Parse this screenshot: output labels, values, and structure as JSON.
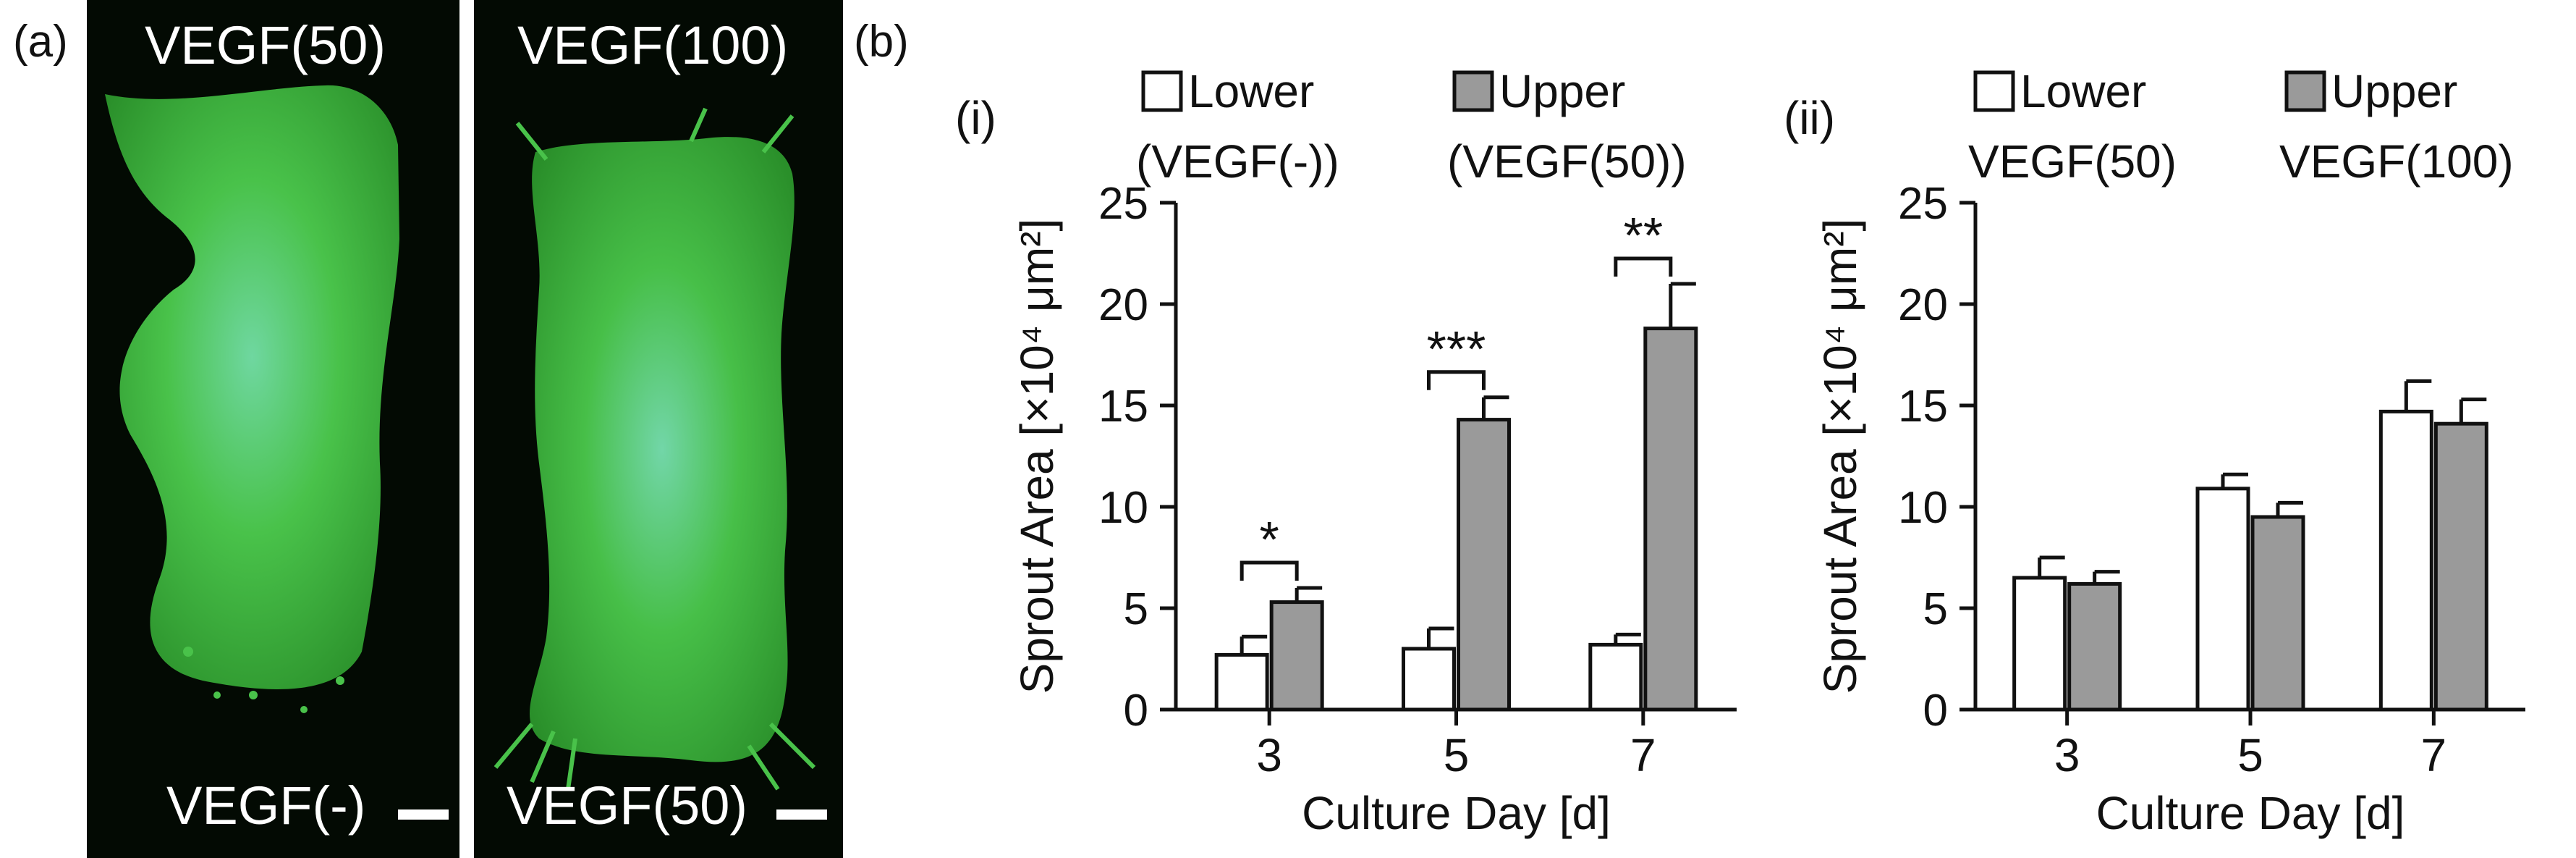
{
  "panel_labels": {
    "a": "(a)",
    "b": "(b)"
  },
  "micrographs": [
    {
      "top_label": "VEGF(50)",
      "bottom_label": "VEGF(-)"
    },
    {
      "top_label": "VEGF(100)",
      "bottom_label": "VEGF(50)"
    }
  ],
  "colors": {
    "upper_bar": "#9a9a9a",
    "lower_bar": "#ffffff",
    "fluorescence": "#3ec83e"
  },
  "chart_data": [
    {
      "type": "bar",
      "panel": "(i)",
      "categories": [
        "3",
        "5",
        "7"
      ],
      "series": [
        {
          "name": "Lower",
          "name2": "(VEGF(-))",
          "values": [
            2.7,
            3.0,
            3.2
          ],
          "errors": [
            0.9,
            1.0,
            0.5
          ]
        },
        {
          "name": "Upper",
          "name2": "(VEGF(50))",
          "values": [
            5.3,
            14.3,
            18.8
          ],
          "errors": [
            0.7,
            1.1,
            2.2
          ]
        }
      ],
      "significance": [
        "*",
        "***",
        "**"
      ],
      "xlabel": "Culture Day [d]",
      "ylabel": "Sprout Area [×10⁴ μm²]",
      "ylim": [
        0,
        25
      ],
      "yticks": [
        0,
        5,
        10,
        15,
        20,
        25
      ]
    },
    {
      "type": "bar",
      "panel": "(ii)",
      "categories": [
        "3",
        "5",
        "7"
      ],
      "series": [
        {
          "name": "Lower",
          "name2": "VEGF(50)",
          "values": [
            6.5,
            10.9,
            14.7
          ],
          "errors": [
            1.0,
            0.7,
            1.5
          ]
        },
        {
          "name": "Upper",
          "name2": "VEGF(100)",
          "values": [
            6.2,
            9.5,
            14.1
          ],
          "errors": [
            0.6,
            0.7,
            1.2
          ]
        }
      ],
      "significance": [],
      "xlabel": "Culture Day [d]",
      "ylabel": "Sprout Area [×10⁴ μm²]",
      "ylim": [
        0,
        25
      ],
      "yticks": [
        0,
        5,
        10,
        15,
        20,
        25
      ]
    }
  ]
}
